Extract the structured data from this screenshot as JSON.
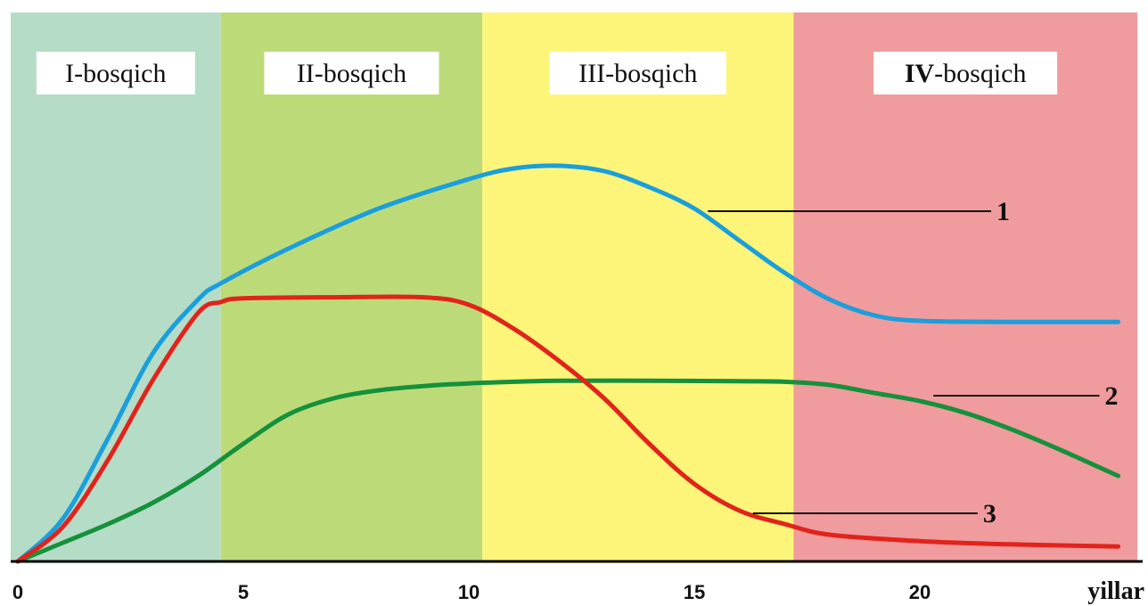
{
  "chart_data": {
    "type": "line",
    "xlabel": "yillar",
    "ylabel": "",
    "xlim": [
      0,
      24.4
    ],
    "ylim": [
      0,
      10
    ],
    "x_ticks": [
      0,
      5,
      10,
      15,
      20
    ],
    "x_tick_labels": [
      "0",
      "5",
      "10",
      "15",
      "20"
    ],
    "grid": false,
    "stages": [
      {
        "label_main": "I",
        "label_suffix": "-bosqich",
        "bold_main": false,
        "x_start": 0,
        "x_end": 4.5,
        "color": "#b5dcc6"
      },
      {
        "label_main": "II",
        "label_suffix": "-bosqich",
        "bold_main": false,
        "x_start": 4.5,
        "x_end": 10.3,
        "color": "#bcdb78"
      },
      {
        "label_main": "III",
        "label_suffix": "-bosqich",
        "bold_main": false,
        "x_start": 10.3,
        "x_end": 17.2,
        "color": "#fdf57a"
      },
      {
        "label_main": "IV",
        "label_suffix": "-bosqich",
        "bold_main": true,
        "x_start": 17.2,
        "x_end": 24.4,
        "color": "#f09b9e"
      }
    ],
    "series": [
      {
        "label": "1",
        "color": "#1a9fdc",
        "label_anchor": [
          15.3,
          6.55
        ],
        "label_pos": [
          21.7,
          6.55
        ],
        "points": [
          [
            0,
            0
          ],
          [
            1,
            0.8
          ],
          [
            2,
            2.3
          ],
          [
            3,
            3.9
          ],
          [
            4,
            4.9
          ],
          [
            4.5,
            5.2
          ],
          [
            6,
            5.85
          ],
          [
            8,
            6.6
          ],
          [
            10,
            7.15
          ],
          [
            11,
            7.35
          ],
          [
            12,
            7.4
          ],
          [
            13,
            7.3
          ],
          [
            14,
            7.0
          ],
          [
            15,
            6.6
          ],
          [
            16,
            6.0
          ],
          [
            17,
            5.4
          ],
          [
            18,
            4.9
          ],
          [
            19,
            4.6
          ],
          [
            20,
            4.5
          ],
          [
            22,
            4.48
          ],
          [
            24.4,
            4.48
          ]
        ]
      },
      {
        "label": "2",
        "color": "#15913c",
        "label_anchor": [
          20.3,
          3.1
        ],
        "label_pos": [
          24.1,
          3.1
        ],
        "points": [
          [
            0,
            0
          ],
          [
            1,
            0.35
          ],
          [
            2,
            0.7
          ],
          [
            3,
            1.1
          ],
          [
            4,
            1.6
          ],
          [
            5,
            2.2
          ],
          [
            6,
            2.75
          ],
          [
            7,
            3.05
          ],
          [
            8,
            3.2
          ],
          [
            9,
            3.28
          ],
          [
            10,
            3.33
          ],
          [
            11,
            3.36
          ],
          [
            12,
            3.38
          ],
          [
            14,
            3.38
          ],
          [
            16,
            3.37
          ],
          [
            17,
            3.36
          ],
          [
            18,
            3.3
          ],
          [
            19,
            3.15
          ],
          [
            20,
            3.0
          ],
          [
            21,
            2.78
          ],
          [
            22,
            2.48
          ],
          [
            23,
            2.13
          ],
          [
            24.4,
            1.6
          ]
        ]
      },
      {
        "label": "3",
        "color": "#e2231b",
        "label_anchor": [
          16.3,
          0.9
        ],
        "label_pos": [
          21.4,
          0.9
        ],
        "points": [
          [
            0,
            0
          ],
          [
            1,
            0.65
          ],
          [
            2,
            1.9
          ],
          [
            3,
            3.4
          ],
          [
            4,
            4.65
          ],
          [
            4.5,
            4.85
          ],
          [
            5,
            4.92
          ],
          [
            7,
            4.94
          ],
          [
            9,
            4.94
          ],
          [
            10,
            4.8
          ],
          [
            11,
            4.35
          ],
          [
            12,
            3.75
          ],
          [
            13,
            3.05
          ],
          [
            14,
            2.2
          ],
          [
            15,
            1.45
          ],
          [
            16,
            0.95
          ],
          [
            17,
            0.7
          ],
          [
            18,
            0.5
          ],
          [
            20,
            0.38
          ],
          [
            22,
            0.32
          ],
          [
            24.4,
            0.28
          ]
        ]
      }
    ]
  }
}
